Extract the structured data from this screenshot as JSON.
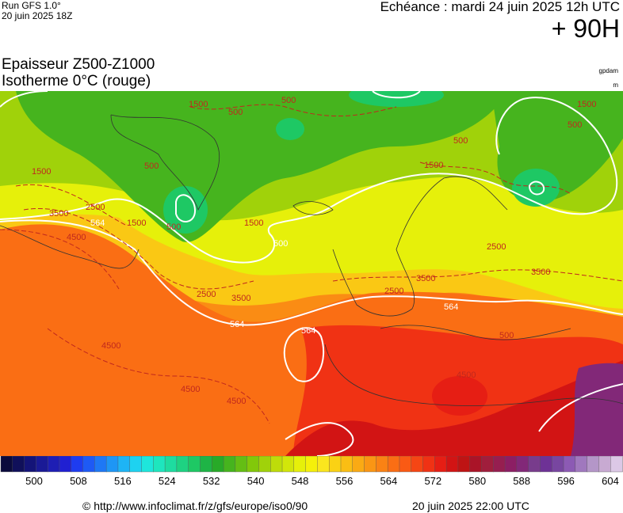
{
  "header": {
    "model": "Run GFS 1.0°",
    "run": "20 juin 2025 18Z",
    "valid": "Echéance : mardi 24 juin 2025 12h UTC",
    "lead": "+ 90H"
  },
  "titles": {
    "line1": "Epaisseur Z500-Z1000",
    "line2": "Isotherme 0°C (rouge)",
    "unit1": "gpdam",
    "unit2": "m"
  },
  "map": {
    "contour_labels": [
      "500",
      "1500",
      "500",
      "500",
      "1500",
      "500",
      "1500",
      "1500",
      "500",
      "1500",
      "3500",
      "2500",
      "4500",
      "564",
      "1500",
      "500",
      "2500",
      "3500",
      "564",
      "2500",
      "3500",
      "564",
      "564",
      "2500",
      "3500",
      "4500",
      "4500",
      "4500",
      "4500",
      "500",
      "500",
      "564"
    ]
  },
  "colorbar": {
    "labels": [
      "500",
      "508",
      "516",
      "524",
      "532",
      "540",
      "548",
      "556",
      "564",
      "572",
      "580",
      "588",
      "596",
      "604"
    ],
    "colors": [
      "#0a0a3c",
      "#10105a",
      "#141478",
      "#1a1a96",
      "#1e1eb4",
      "#2020d2",
      "#1e3cf0",
      "#1e5af5",
      "#1e78f5",
      "#1e96f5",
      "#1eb4f5",
      "#1ed2f0",
      "#1ee6dc",
      "#1ee6be",
      "#1edca0",
      "#1ed282",
      "#1ec864",
      "#1eb446",
      "#28aa28",
      "#46b41e",
      "#64be14",
      "#82c80a",
      "#a0d20a",
      "#bedc0a",
      "#d2e60a",
      "#e6f00a",
      "#f5f00a",
      "#fae61e",
      "#fad214",
      "#fabe14",
      "#faaa14",
      "#fa9614",
      "#fa8214",
      "#fa6e14",
      "#fa5a14",
      "#f54614",
      "#f03214",
      "#e61e14",
      "#d21414",
      "#be1414",
      "#aa1428",
      "#a01e3c",
      "#961e50",
      "#8c1e64",
      "#822878",
      "#783c8c",
      "#6e3296",
      "#7846a0",
      "#8c5ab4",
      "#a078be",
      "#b496c8",
      "#c8aad2",
      "#dcc8e6"
    ]
  },
  "footer": {
    "source": "© http://www.infoclimat.fr/z/gfs/europe/iso0/90",
    "created": "20 juin 2025 22:00 UTC"
  }
}
